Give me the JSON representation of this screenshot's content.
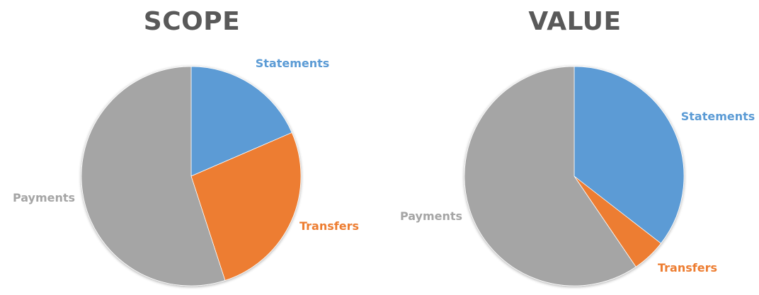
{
  "chart_data": [
    {
      "type": "pie",
      "title": "SCOPE",
      "slices": [
        {
          "label": "Statements",
          "value": 18.5,
          "color": "#5B9BD5"
        },
        {
          "label": "Transfers",
          "value": 26.5,
          "color": "#ED7D31"
        },
        {
          "label": "Payments",
          "value": 55.0,
          "color": "#A5A5A5"
        }
      ]
    },
    {
      "type": "pie",
      "title": "VALUE",
      "slices": [
        {
          "label": "Statements",
          "value": 35.5,
          "color": "#5B9BD5"
        },
        {
          "label": "Transfers",
          "value": 5.0,
          "color": "#ED7D31"
        },
        {
          "label": "Payments",
          "value": 59.5,
          "color": "#A5A5A5"
        }
      ]
    }
  ]
}
